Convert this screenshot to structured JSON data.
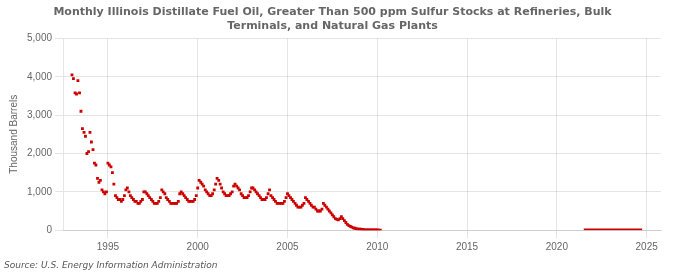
{
  "chart_data": {
    "type": "scatter",
    "title": "Monthly Illinois Distillate Fuel Oil, Greater Than 500 ppm Sulfur Stocks at Refineries, Bulk\nTerminals, and Natural Gas Plants",
    "ylabel": "Thousand Barrels",
    "source": "Source: U.S. Energy Information Administration",
    "xlim": [
      1992.5,
      2025.8
    ],
    "xticks": [
      1995,
      2000,
      2005,
      2010,
      2015,
      2020,
      2025
    ],
    "ylim": [
      0,
      5000
    ],
    "yticks": [
      0,
      {
        "value": 1000,
        "label": "1,000"
      },
      {
        "value": 2000,
        "label": "2,000"
      },
      {
        "value": 3000,
        "label": "3,000"
      },
      {
        "value": 4000,
        "label": "4,000"
      },
      {
        "value": 5000,
        "label": "5,000"
      }
    ],
    "grid": true,
    "series": [
      {
        "type": "scatter",
        "color": "#cc0000",
        "marker": "square",
        "x": [
          1993.0,
          1993.08,
          1993.17,
          1993.25,
          1993.33,
          1993.42,
          1993.5,
          1993.58,
          1993.67,
          1993.75,
          1993.83,
          1993.92,
          1994.0,
          1994.08,
          1994.17,
          1994.25,
          1994.33,
          1994.42,
          1994.5,
          1994.58,
          1994.67,
          1994.75,
          1994.83,
          1994.92,
          1995.0,
          1995.08,
          1995.17,
          1995.25,
          1995.33,
          1995.42,
          1995.5,
          1995.58,
          1995.67,
          1995.75,
          1995.83,
          1995.92,
          1996.0,
          1996.08,
          1996.17,
          1996.25,
          1996.33,
          1996.42,
          1996.5,
          1996.58,
          1996.67,
          1996.75,
          1996.83,
          1996.92,
          1997.0,
          1997.08,
          1997.17,
          1997.25,
          1997.33,
          1997.42,
          1997.5,
          1997.58,
          1997.67,
          1997.75,
          1997.83,
          1997.92,
          1998.0,
          1998.08,
          1998.17,
          1998.25,
          1998.33,
          1998.42,
          1998.5,
          1998.58,
          1998.67,
          1998.75,
          1998.83,
          1998.92,
          1999.0,
          1999.08,
          1999.17,
          1999.25,
          1999.33,
          1999.42,
          1999.5,
          1999.58,
          1999.67,
          1999.75,
          1999.83,
          1999.92,
          2000.0,
          2000.08,
          2000.17,
          2000.25,
          2000.33,
          2000.42,
          2000.5,
          2000.58,
          2000.67,
          2000.75,
          2000.83,
          2000.92,
          2001.0,
          2001.08,
          2001.17,
          2001.25,
          2001.33,
          2001.42,
          2001.5,
          2001.58,
          2001.67,
          2001.75,
          2001.83,
          2001.92,
          2002.0,
          2002.08,
          2002.17,
          2002.25,
          2002.33,
          2002.42,
          2002.5,
          2002.58,
          2002.67,
          2002.75,
          2002.83,
          2002.92,
          2003.0,
          2003.08,
          2003.17,
          2003.25,
          2003.33,
          2003.42,
          2003.5,
          2003.58,
          2003.67,
          2003.75,
          2003.83,
          2003.92,
          2004.0,
          2004.08,
          2004.17,
          2004.25,
          2004.33,
          2004.42,
          2004.5,
          2004.58,
          2004.67,
          2004.75,
          2004.83,
          2004.92,
          2005.0,
          2005.08,
          2005.17,
          2005.25,
          2005.33,
          2005.42,
          2005.5,
          2005.58,
          2005.67,
          2005.75,
          2005.83,
          2005.92,
          2006.0,
          2006.08,
          2006.17,
          2006.25,
          2006.33,
          2006.42,
          2006.5,
          2006.58,
          2006.67,
          2006.75,
          2006.83,
          2006.92,
          2007.0,
          2007.08,
          2007.17,
          2007.25,
          2007.33,
          2007.42,
          2007.5,
          2007.58,
          2007.67,
          2007.75,
          2007.83,
          2007.92,
          2008.0,
          2008.08,
          2008.17,
          2008.25,
          2008.33,
          2008.42,
          2008.5,
          2008.58,
          2008.67,
          2008.75,
          2008.83,
          2008.92,
          2009.0,
          2009.08,
          2009.17,
          2009.25,
          2009.33,
          2009.42,
          2009.5,
          2009.58,
          2009.67,
          2009.75,
          2009.83,
          2009.92,
          2010.0,
          2010.08,
          2010.17
        ],
        "values": [
          4050,
          3950,
          3580,
          3550,
          3900,
          3580,
          3100,
          2650,
          2550,
          2450,
          2000,
          2050,
          2550,
          2300,
          2100,
          1750,
          1700,
          1350,
          1250,
          1300,
          1050,
          1000,
          950,
          1000,
          1750,
          1700,
          1650,
          1500,
          1200,
          900,
          850,
          800,
          800,
          750,
          800,
          900,
          1050,
          1100,
          1000,
          900,
          850,
          800,
          750,
          750,
          700,
          700,
          750,
          800,
          1000,
          1000,
          950,
          900,
          850,
          800,
          750,
          700,
          700,
          700,
          750,
          850,
          1050,
          1000,
          950,
          850,
          800,
          750,
          700,
          700,
          700,
          700,
          700,
          750,
          950,
          1000,
          950,
          900,
          850,
          800,
          750,
          750,
          750,
          750,
          800,
          900,
          1100,
          1300,
          1250,
          1200,
          1150,
          1050,
          1000,
          950,
          900,
          900,
          950,
          1050,
          1200,
          1350,
          1300,
          1200,
          1100,
          1000,
          950,
          900,
          900,
          900,
          950,
          1000,
          1150,
          1200,
          1150,
          1100,
          1050,
          950,
          900,
          850,
          850,
          850,
          900,
          1000,
          1100,
          1100,
          1050,
          1000,
          950,
          900,
          850,
          800,
          800,
          800,
          850,
          950,
          1050,
          900,
          850,
          800,
          750,
          700,
          700,
          700,
          700,
          700,
          750,
          850,
          950,
          900,
          850,
          800,
          750,
          700,
          650,
          600,
          600,
          600,
          650,
          700,
          850,
          800,
          750,
          700,
          650,
          600,
          600,
          550,
          500,
          500,
          500,
          550,
          700,
          650,
          600,
          550,
          500,
          450,
          400,
          350,
          300,
          280,
          270,
          300,
          350,
          300,
          250,
          200,
          150,
          120,
          100,
          80,
          60,
          50,
          40,
          30,
          30,
          25,
          20,
          15,
          10,
          10,
          8,
          5,
          5,
          5,
          5,
          5,
          5,
          4,
          3
        ]
      },
      {
        "type": "line",
        "color": "#cc0000",
        "x": [
          2021.5,
          2024.75
        ],
        "values": [
          15,
          15
        ]
      }
    ]
  }
}
